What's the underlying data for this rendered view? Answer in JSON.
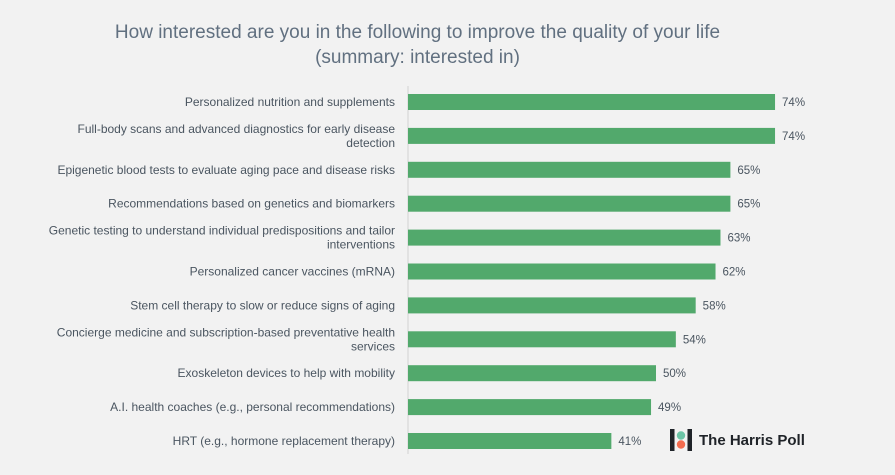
{
  "chart_data": {
    "type": "bar",
    "orientation": "horizontal",
    "title": "How interested are you in the following to improve the quality of your life",
    "subtitle": "(summary: interested in)",
    "categories": [
      "Personalized nutrition and supplements",
      "Full-body scans and advanced diagnostics for early disease detection",
      "Epigenetic blood tests to evaluate aging pace and disease risks",
      "Recommendations based on genetics and biomarkers",
      "Genetic testing to understand individual predispositions and tailor interventions",
      "Personalized cancer vaccines (mRNA)",
      "Stem cell therapy to slow or reduce signs of aging",
      "Concierge medicine and subscription-based preventative health services",
      "Exoskeleton devices to help with mobility",
      "A.I. health coaches (e.g., personal recommendations)",
      "HRT (e.g., hormone replacement therapy)"
    ],
    "values": [
      74,
      74,
      65,
      65,
      63,
      62,
      58,
      54,
      50,
      49,
      41
    ],
    "value_labels": [
      "74%",
      "74%",
      "65%",
      "65%",
      "63%",
      "62%",
      "58%",
      "54%",
      "50%",
      "49%",
      "41%"
    ],
    "xlim": [
      0,
      100
    ],
    "bar_color": "#52a96c",
    "grid": false,
    "legend": "none"
  },
  "branding": {
    "logo_text": "The Harris Poll",
    "logo_colors": [
      "#1f2328",
      "#f26c4f",
      "#6bc4a6"
    ]
  }
}
